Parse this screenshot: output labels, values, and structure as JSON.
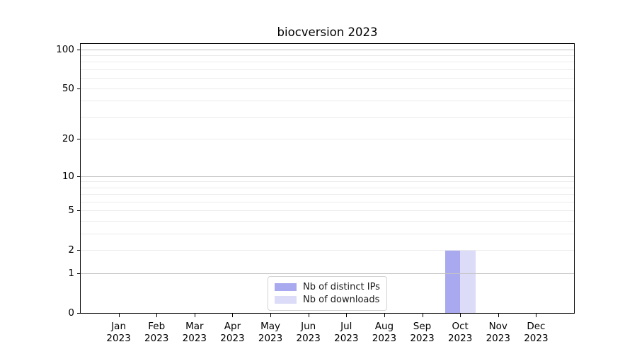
{
  "chart_data": {
    "type": "bar",
    "title": "biocversion 2023",
    "categories": [
      "Jan",
      "Feb",
      "Mar",
      "Apr",
      "May",
      "Jun",
      "Jul",
      "Aug",
      "Sep",
      "Oct",
      "Nov",
      "Dec"
    ],
    "category_year": "2023",
    "series": [
      {
        "name": "Nb of distinct IPs",
        "color": "#a9a9f0",
        "values": [
          0,
          0,
          0,
          0,
          0,
          0,
          0,
          0,
          0,
          2,
          0,
          0
        ]
      },
      {
        "name": "Nb of downloads",
        "color": "#dcdcf8",
        "values": [
          0,
          0,
          0,
          0,
          0,
          0,
          0,
          0,
          0,
          2,
          0,
          0
        ]
      }
    ],
    "yscale": "log1p",
    "ylim": [
      0,
      110
    ],
    "yticks": [
      0,
      1,
      2,
      5,
      10,
      20,
      50,
      100
    ],
    "major_gridlines": [
      1,
      10,
      100
    ],
    "minor_gridlines": [
      2,
      3,
      4,
      5,
      6,
      7,
      8,
      9,
      20,
      30,
      40,
      50,
      60,
      70,
      80,
      90
    ],
    "grid": "horizontal",
    "legend_position": "lower center",
    "xlabel": "",
    "ylabel": ""
  },
  "colors": {
    "background": "#ffffff",
    "spine": "#000000",
    "major_grid": "#c3c3c3",
    "minor_grid": "#ebebeb",
    "legend_border": "#d2d2d2",
    "text": "#000000"
  }
}
